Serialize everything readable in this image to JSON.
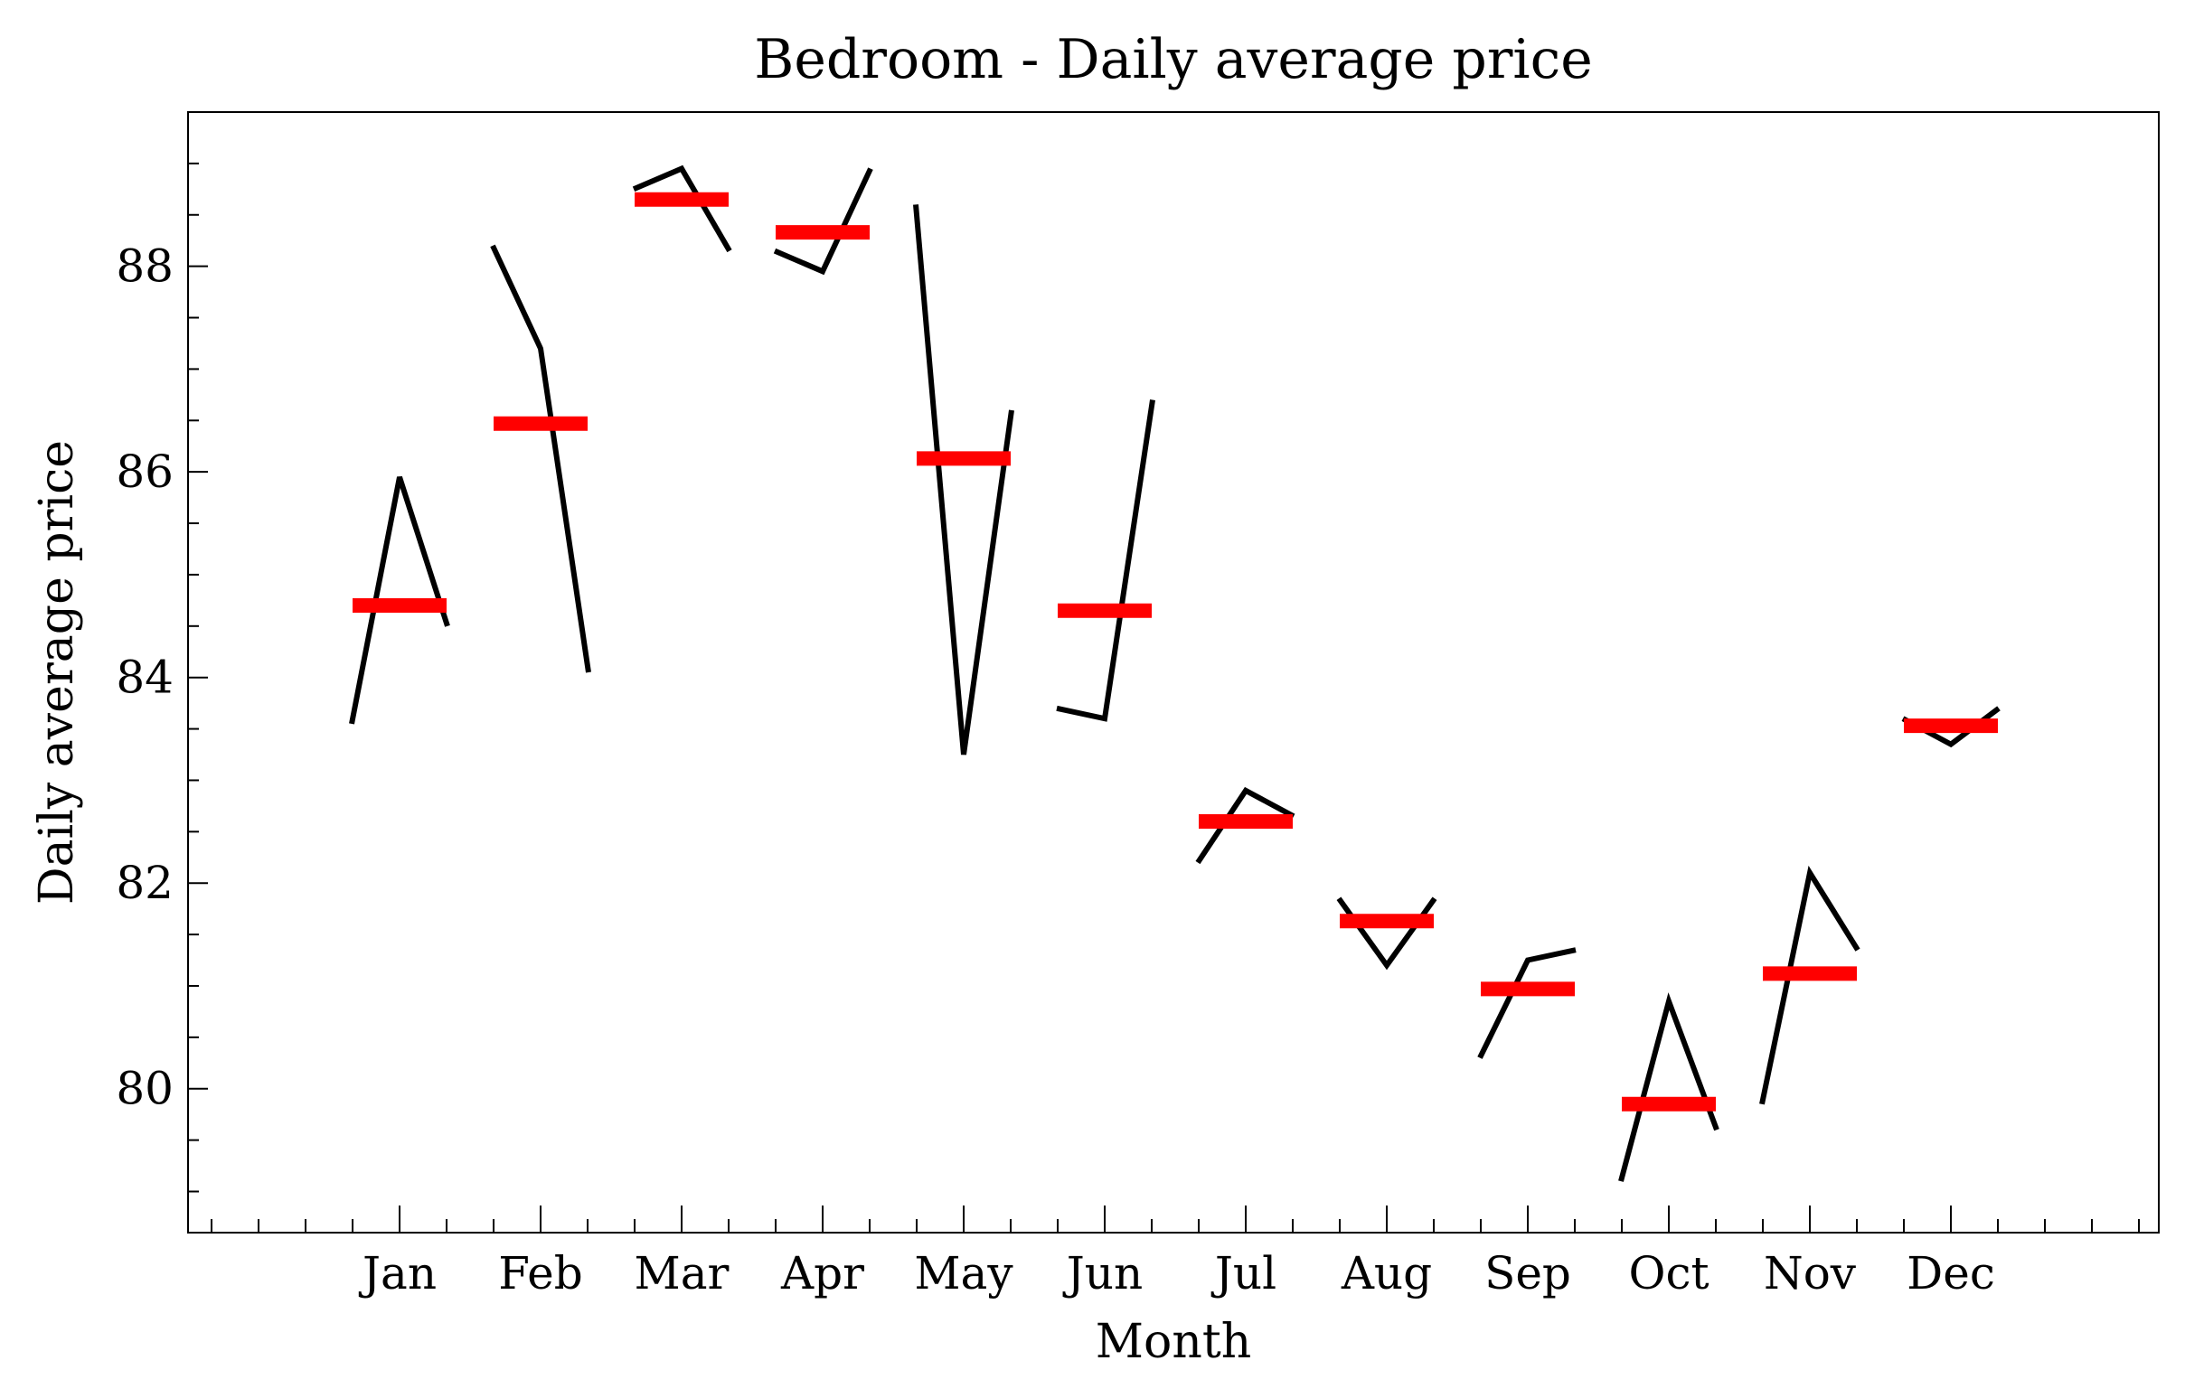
{
  "chart_data": {
    "type": "line",
    "title": "Bedroom - Daily average price",
    "xlabel": "Month",
    "ylabel": "Daily average price",
    "categories": [
      "Jan",
      "Feb",
      "Mar",
      "Apr",
      "May",
      "Jun",
      "Jul",
      "Aug",
      "Sep",
      "Oct",
      "Nov",
      "Dec"
    ],
    "ylim": [
      78.6,
      89.5
    ],
    "yticks": [
      80,
      82,
      84,
      86,
      88
    ],
    "series": [
      {
        "color": "#000000",
        "values": [
          [
            83.55,
            85.95,
            84.5
          ],
          [
            88.2,
            87.2,
            84.05
          ],
          [
            88.75,
            88.95,
            88.15
          ],
          [
            88.15,
            87.95,
            88.95
          ],
          [
            88.6,
            83.25,
            86.6
          ],
          [
            83.7,
            83.6,
            86.7
          ],
          [
            82.2,
            82.9,
            82.65
          ],
          [
            81.85,
            81.2,
            81.85
          ],
          [
            80.3,
            81.25,
            81.35
          ],
          [
            79.1,
            80.85,
            79.6
          ],
          [
            79.85,
            82.1,
            81.35
          ],
          [
            83.6,
            83.35,
            83.7
          ]
        ]
      },
      {
        "color": "#ff0000",
        "values": [
          84.7,
          86.47,
          88.65,
          88.33,
          86.13,
          84.65,
          82.6,
          81.63,
          80.97,
          79.85,
          81.12,
          83.53
        ]
      }
    ]
  }
}
